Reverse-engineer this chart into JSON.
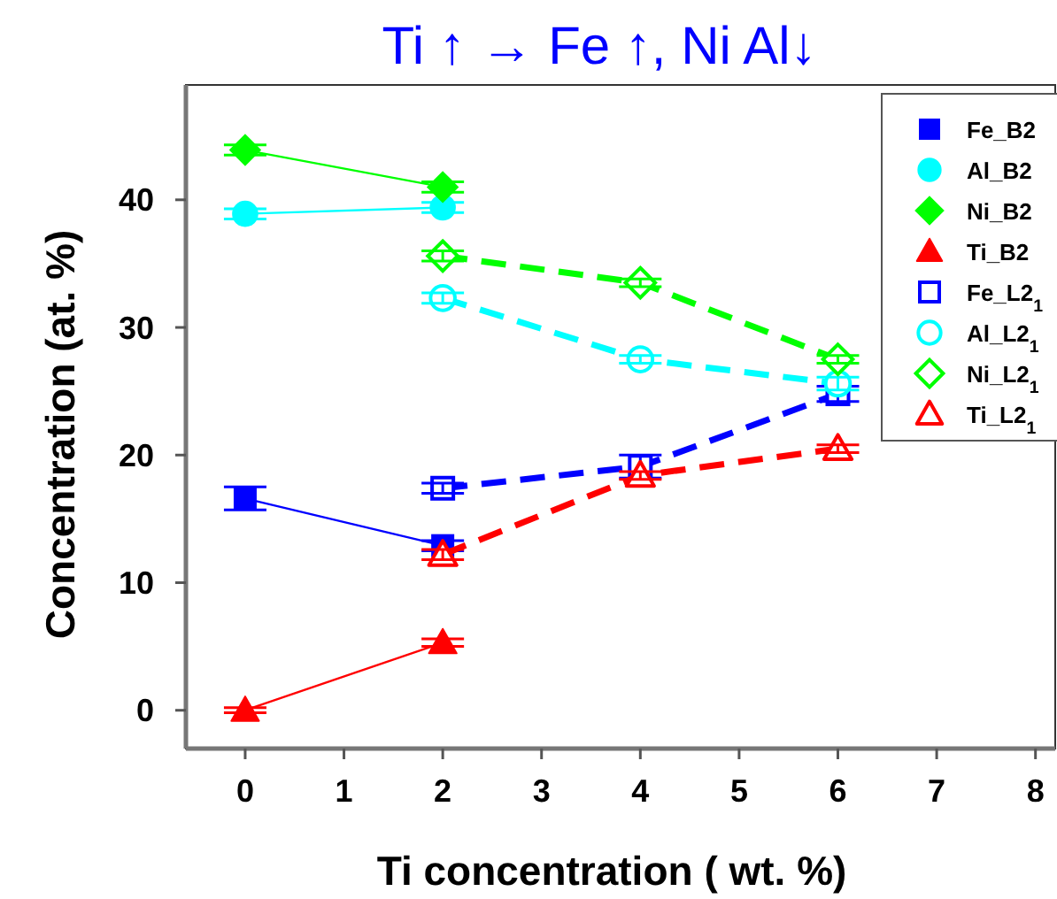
{
  "chart_data": {
    "type": "line",
    "title": "Ti ↑ → Fe ↑, Ni Al↓",
    "xlabel": "Ti concentration ( wt. %)",
    "ylabel": "Concentration (at. %)",
    "xlim": [
      -0.6,
      8.2
    ],
    "xticks": [
      0,
      1,
      2,
      3,
      4,
      5,
      6,
      7,
      8
    ],
    "ylim": [
      -3,
      49
    ],
    "yticks": [
      0,
      10,
      20,
      30,
      40
    ],
    "grid": false,
    "legend": "top right",
    "series": [
      {
        "name": "Fe_B2",
        "color": "#0000ff",
        "marker": "square",
        "line_style": "solid",
        "x": [
          0,
          2
        ],
        "values": [
          16.6,
          12.9
        ],
        "errors": [
          0.9,
          0.4
        ]
      },
      {
        "name": "Al_B2",
        "color": "#00ffff",
        "marker": "circle",
        "line_style": "solid",
        "x": [
          0,
          2
        ],
        "values": [
          38.9,
          39.4
        ],
        "errors": [
          0.4,
          0.4
        ]
      },
      {
        "name": "Ni_B2",
        "color": "#00ff00",
        "marker": "diamond",
        "line_style": "solid",
        "x": [
          0,
          2
        ],
        "values": [
          43.9,
          41.0
        ],
        "errors": [
          0.4,
          0.4
        ]
      },
      {
        "name": "Ti_B2",
        "color": "#ff0000",
        "marker": "triangle",
        "line_style": "solid",
        "x": [
          0,
          2
        ],
        "values": [
          0,
          5.3
        ],
        "errors": [
          0.2,
          0.3
        ]
      },
      {
        "name": "Fe_L2$_{1}$",
        "color": "#0000ff",
        "marker": "square",
        "line_style": "dashed",
        "x": [
          2,
          4,
          6
        ],
        "values": [
          17.4,
          19.1,
          24.8
        ],
        "errors": [
          0.4,
          0.9,
          0.6
        ]
      },
      {
        "name": "Al_L2$_{1}$",
        "color": "#00ffff",
        "marker": "circle",
        "line_style": "dashed",
        "x": [
          2,
          4,
          6
        ],
        "values": [
          32.3,
          27.5,
          25.6
        ],
        "errors": [
          0.4,
          0.3,
          0.5
        ]
      },
      {
        "name": "Ni_L2$_{1}$",
        "color": "#00ff00",
        "marker": "diamond",
        "line_style": "dashed",
        "x": [
          2,
          4,
          6
        ],
        "values": [
          35.6,
          33.5,
          27.5
        ],
        "errors": [
          0.4,
          0.3,
          0.3
        ]
      },
      {
        "name": "Ti_L2$_{1}$",
        "color": "#ff0000",
        "marker": "triangle",
        "line_style": "dashed",
        "x": [
          2,
          4,
          6
        ],
        "values": [
          12.2,
          18.4,
          20.5
        ],
        "errors": [
          0.4,
          0.3,
          0.3
        ]
      }
    ]
  }
}
